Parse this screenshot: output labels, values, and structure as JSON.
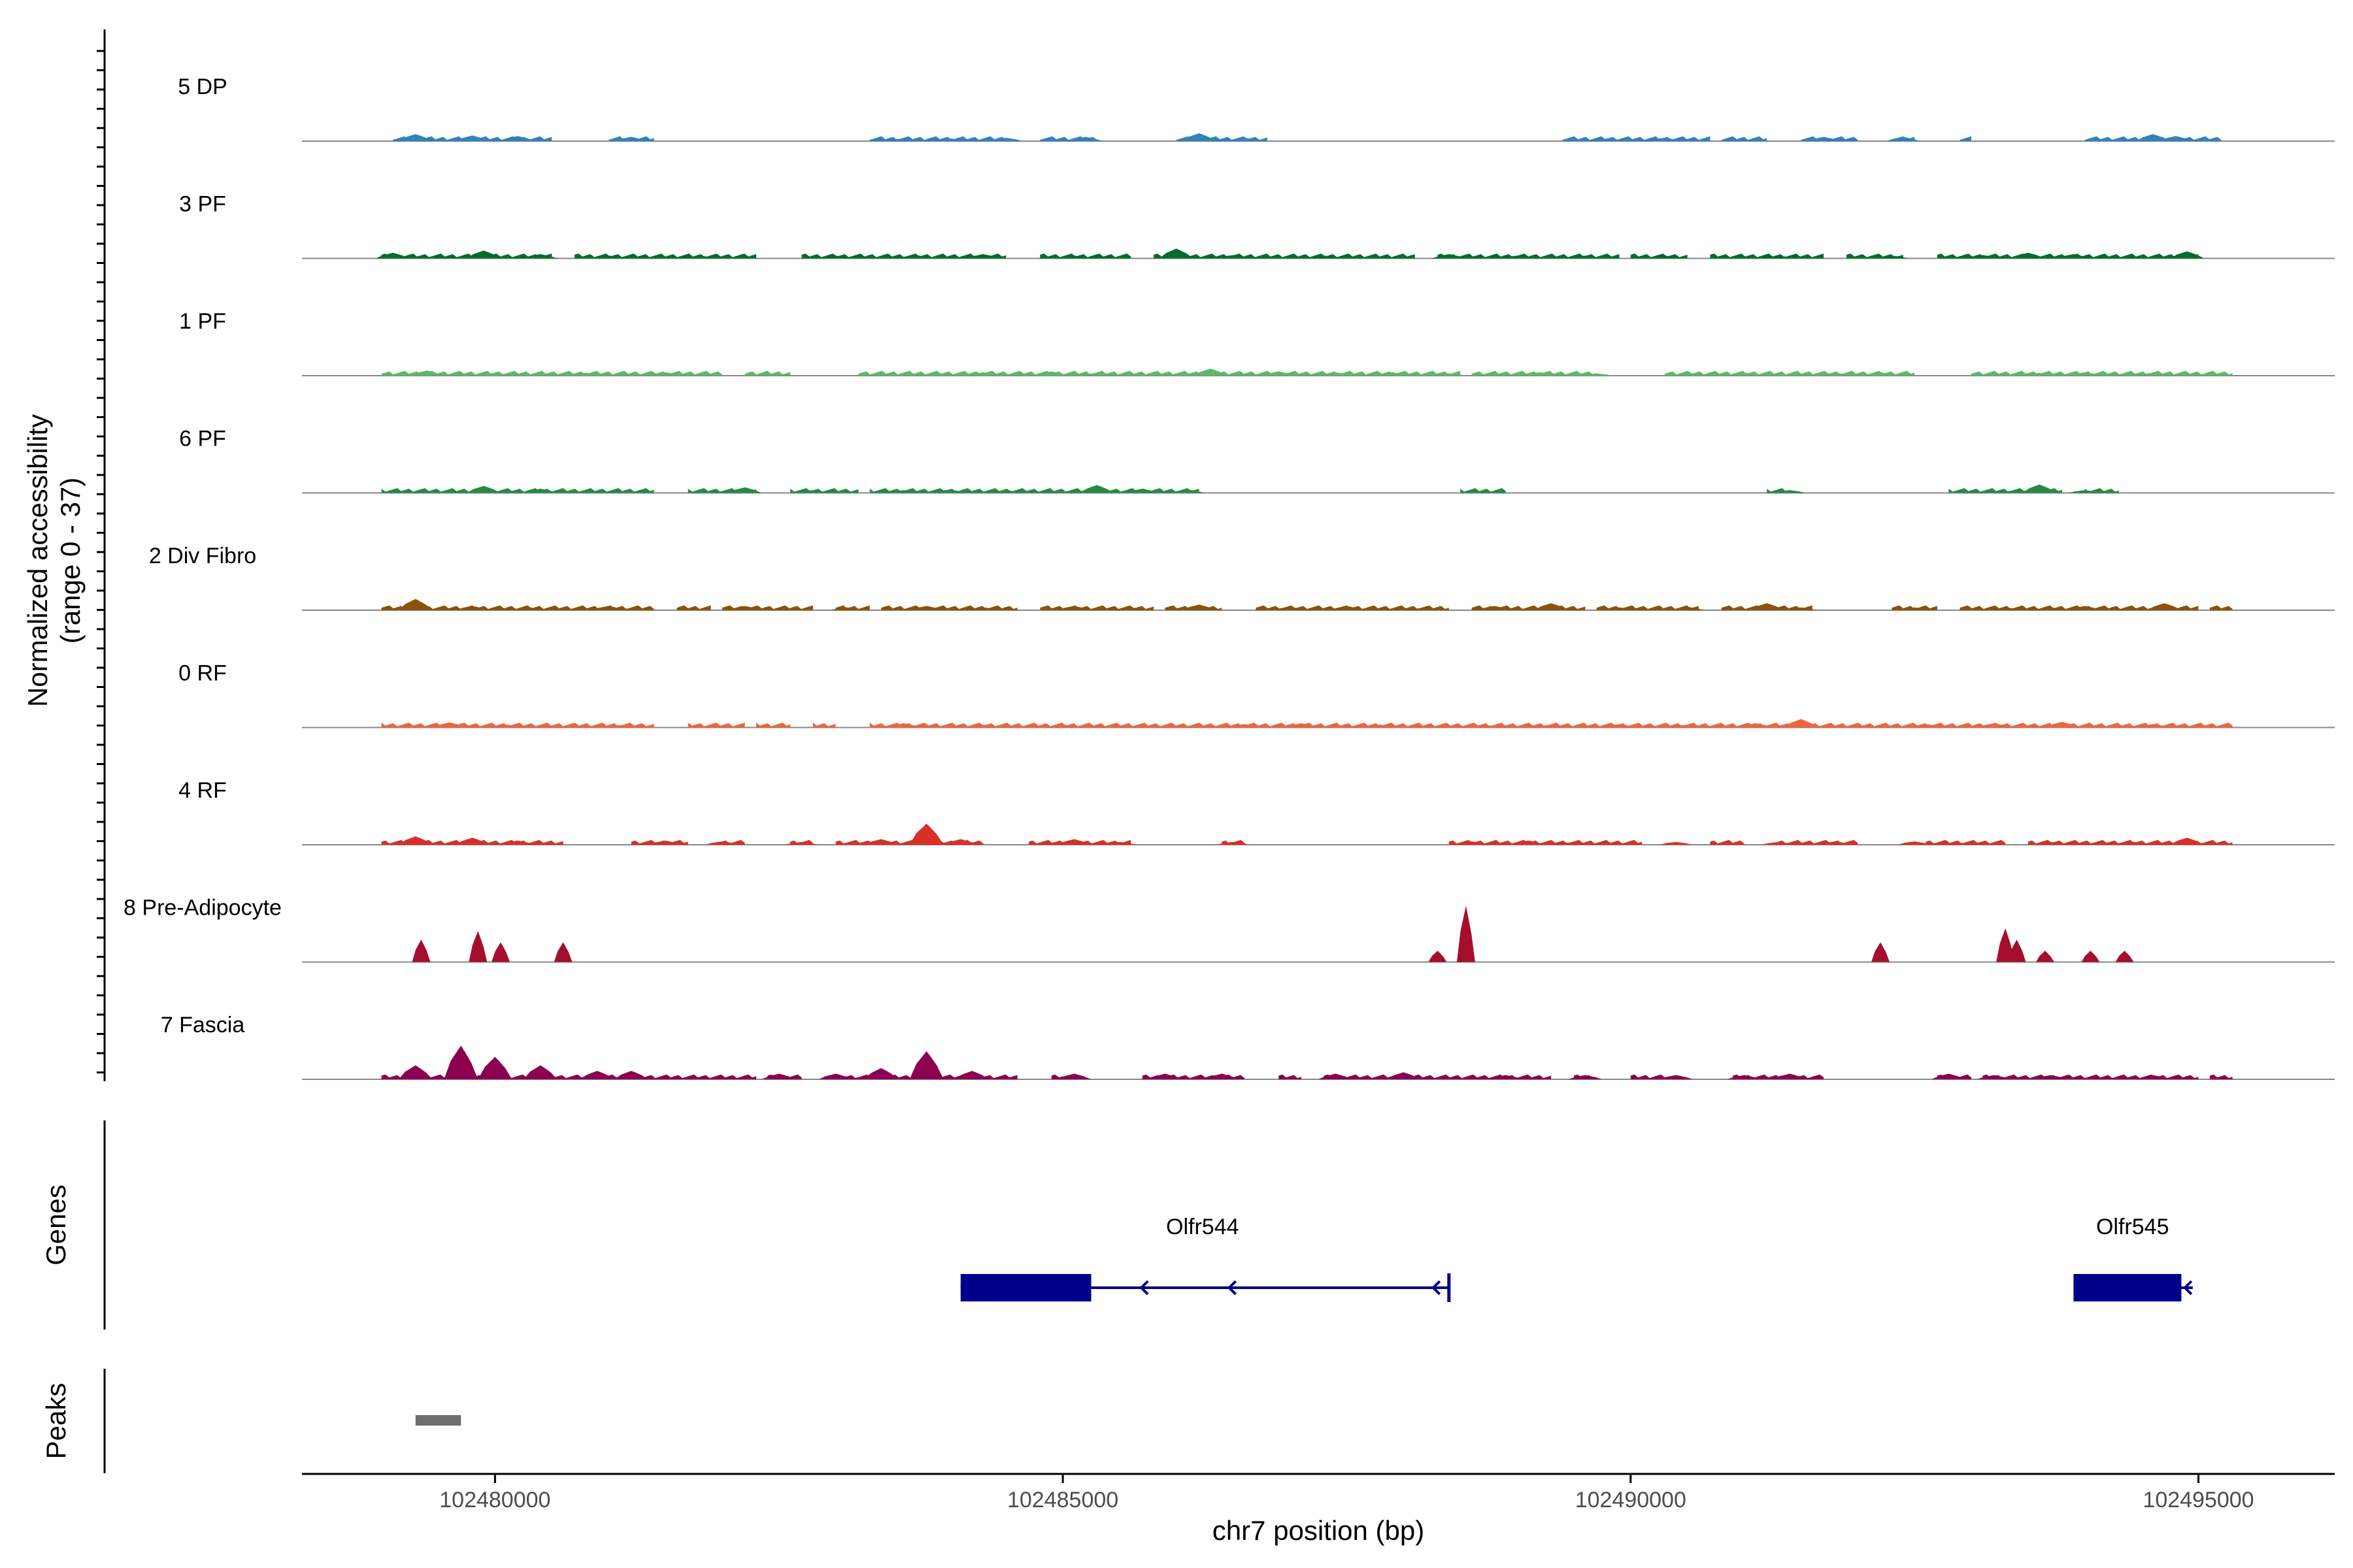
{
  "chart_data": {
    "type": "area",
    "chromosome": "chr7",
    "xlabel": "chr7 position (bp)",
    "xlim": [
      102478300,
      102496200
    ],
    "x_ticks": [
      102480000,
      102485000,
      102490000,
      102495000
    ],
    "x_tick_labels": [
      "102480000",
      "102485000",
      "102490000",
      "102495000"
    ],
    "y_label_line1": "Normalized accessibility",
    "y_label_line2": "(range 0 - 37)",
    "ylim": [
      0,
      37
    ],
    "tracks": [
      {
        "name": "5 DP",
        "color": "#3182bd",
        "start": 102479000,
        "end": 102495200,
        "segments": [
          [
            102479100,
            102480500
          ],
          [
            102481000,
            102481400
          ],
          [
            102483300,
            102484500
          ],
          [
            102484800,
            102485300
          ],
          [
            102486000,
            102486800
          ],
          [
            102489400,
            102490700
          ],
          [
            102490800,
            102491200
          ],
          [
            102491500,
            102492000
          ],
          [
            102492300,
            102492500
          ],
          [
            102492900,
            102493000
          ],
          [
            102494000,
            102495200
          ]
        ],
        "peaks": [
          [
            102479300,
            2.5
          ],
          [
            102479800,
            2
          ],
          [
            102480200,
            1.8
          ],
          [
            102481200,
            1.5
          ],
          [
            102483600,
            1
          ],
          [
            102484000,
            1
          ],
          [
            102484500,
            1.2
          ],
          [
            102485200,
            1.5
          ],
          [
            102486200,
            2.8
          ],
          [
            102486600,
            1.2
          ],
          [
            102489800,
            1
          ],
          [
            102490300,
            1.2
          ],
          [
            102490500,
            0.8
          ],
          [
            102491700,
            1.5
          ],
          [
            102492400,
            1.5
          ],
          [
            102494600,
            2.5
          ],
          [
            102494800,
            1.8
          ]
        ]
      },
      {
        "name": "3 PF",
        "color": "#006d2c",
        "start": 102479000,
        "end": 102495200,
        "segments": [
          [
            102479000,
            102480500
          ],
          [
            102480700,
            102482300
          ],
          [
            102482700,
            102484500
          ],
          [
            102484800,
            102485600
          ],
          [
            102485800,
            102488100
          ],
          [
            102488300,
            102489900
          ],
          [
            102490000,
            102490500
          ],
          [
            102490700,
            102491700
          ],
          [
            102491900,
            102492400
          ],
          [
            102492700,
            102495000
          ]
        ],
        "peaks": [
          [
            102479100,
            2
          ],
          [
            102479900,
            2.8
          ],
          [
            102480400,
            1.5
          ],
          [
            102481000,
            1
          ],
          [
            102481800,
            1
          ],
          [
            102483000,
            1
          ],
          [
            102483700,
            1.2
          ],
          [
            102484300,
            1.5
          ],
          [
            102485100,
            1
          ],
          [
            102486000,
            3.5
          ],
          [
            102486500,
            1.2
          ],
          [
            102487300,
            1
          ],
          [
            102488400,
            1.5
          ],
          [
            102489000,
            1
          ],
          [
            102489600,
            1
          ],
          [
            102490300,
            1
          ],
          [
            102491300,
            1
          ],
          [
            102492300,
            1
          ],
          [
            102493100,
            1.2
          ],
          [
            102493500,
            2
          ],
          [
            102493900,
            1.5
          ],
          [
            102494900,
            2.5
          ]
        ]
      },
      {
        "name": "1 PF",
        "color": "#5ab966",
        "start": 102479000,
        "end": 102495300,
        "segments": [
          [
            102479000,
            102482000
          ],
          [
            102482200,
            102482600
          ],
          [
            102483200,
            102488500
          ],
          [
            102488600,
            102489700
          ],
          [
            102490300,
            102492500
          ],
          [
            102493000,
            102495300
          ]
        ],
        "peaks": [
          [
            102479400,
            1.8
          ],
          [
            102480000,
            1
          ],
          [
            102480800,
            1
          ],
          [
            102481500,
            1.2
          ],
          [
            102483400,
            1
          ],
          [
            102484300,
            1.2
          ],
          [
            102484900,
            1.5
          ],
          [
            102485300,
            1
          ],
          [
            102486300,
            2.5
          ],
          [
            102486900,
            1.5
          ],
          [
            102487400,
            1.2
          ],
          [
            102487900,
            1.2
          ],
          [
            102488400,
            0.8
          ],
          [
            102489200,
            1.2
          ],
          [
            102489700,
            0.8
          ],
          [
            102490500,
            1
          ],
          [
            102491000,
            1
          ],
          [
            102491800,
            1
          ],
          [
            102492200,
            1.2
          ],
          [
            102493600,
            1
          ],
          [
            102494000,
            1.2
          ],
          [
            102494600,
            1
          ]
        ]
      },
      {
        "name": "6 PF",
        "color": "#238b45",
        "start": 102479000,
        "end": 102495300,
        "segments": [
          [
            102479000,
            102481400
          ],
          [
            102481700,
            102482300
          ],
          [
            102482600,
            102483200
          ],
          [
            102483300,
            102486200
          ],
          [
            102488500,
            102488900
          ],
          [
            102491200,
            102491400
          ],
          [
            102492800,
            102493500
          ],
          [
            102493600,
            102493800
          ],
          [
            102494000,
            102494300
          ]
        ],
        "peaks": [
          [
            102479900,
            2.5
          ],
          [
            102480400,
            1.5
          ],
          [
            102482200,
            2
          ],
          [
            102482800,
            1
          ],
          [
            102483600,
            1
          ],
          [
            102484000,
            1.2
          ],
          [
            102484500,
            1
          ],
          [
            102485300,
            2.8
          ],
          [
            102485700,
            1.5
          ],
          [
            102486100,
            1.2
          ],
          [
            102491400,
            1
          ],
          [
            102493400,
            1
          ],
          [
            102493600,
            3
          ],
          [
            102494000,
            1
          ]
        ]
      },
      {
        "name": "2 Div Fibro",
        "color": "#8c510a",
        "start": 102479000,
        "end": 102495300,
        "segments": [
          [
            102479000,
            102481400
          ],
          [
            102481600,
            102481900
          ],
          [
            102482000,
            102482800
          ],
          [
            102483000,
            102483300
          ],
          [
            102483400,
            102484600
          ],
          [
            102484800,
            102485800
          ],
          [
            102485900,
            102486400
          ],
          [
            102486700,
            102488400
          ],
          [
            102488600,
            102489600
          ],
          [
            102489700,
            102490600
          ],
          [
            102490800,
            102491600
          ],
          [
            102492300,
            102492700
          ],
          [
            102492900,
            102495000
          ],
          [
            102495100,
            102495300
          ]
        ],
        "peaks": [
          [
            102479300,
            4
          ],
          [
            102479800,
            1.5
          ],
          [
            102480300,
            1
          ],
          [
            102481000,
            1.5
          ],
          [
            102482200,
            1.5
          ],
          [
            102483100,
            1
          ],
          [
            102483800,
            1.5
          ],
          [
            102484300,
            1
          ],
          [
            102485100,
            1.5
          ],
          [
            102485600,
            1
          ],
          [
            102486200,
            2
          ],
          [
            102487000,
            1.2
          ],
          [
            102487500,
            1.5
          ],
          [
            102488200,
            1
          ],
          [
            102488800,
            1.5
          ],
          [
            102489300,
            2.5
          ],
          [
            102489900,
            1
          ],
          [
            102490500,
            1.2
          ],
          [
            102491200,
            2.5
          ],
          [
            102491500,
            1
          ],
          [
            102492500,
            1
          ],
          [
            102493300,
            1
          ],
          [
            102493700,
            1
          ],
          [
            102494000,
            1.5
          ],
          [
            102494700,
            2.5
          ]
        ]
      },
      {
        "name": "0 RF",
        "color": "#f0643c",
        "start": 102479000,
        "end": 102495300,
        "segments": [
          [
            102479000,
            102481400
          ],
          [
            102481700,
            102482200
          ],
          [
            102482300,
            102482600
          ],
          [
            102482800,
            102483000
          ],
          [
            102483300,
            102493700
          ],
          [
            102493800,
            102495300
          ]
        ],
        "peaks": [
          [
            102479600,
            1.8
          ],
          [
            102480100,
            1
          ],
          [
            102481100,
            0.8
          ],
          [
            102483600,
            1.5
          ],
          [
            102484300,
            1
          ],
          [
            102485000,
            1
          ],
          [
            102486600,
            1.2
          ],
          [
            102487100,
            1.5
          ],
          [
            102487800,
            1
          ],
          [
            102488700,
            1
          ],
          [
            102489300,
            1
          ],
          [
            102489900,
            1.2
          ],
          [
            102490500,
            1
          ],
          [
            102491100,
            1.5
          ],
          [
            102491500,
            3
          ],
          [
            102492600,
            1.2
          ],
          [
            102493200,
            1.5
          ],
          [
            102493800,
            2
          ],
          [
            102494600,
            1.2
          ]
        ]
      },
      {
        "name": "4 RF",
        "color": "#d73027",
        "start": 102479000,
        "end": 102495300,
        "segments": [
          [
            102479000,
            102480600
          ],
          [
            102481200,
            102481700
          ],
          [
            102482000,
            102482200
          ],
          [
            102482600,
            102482800
          ],
          [
            102483000,
            102483500
          ],
          [
            102483500,
            102484300
          ],
          [
            102484700,
            102485600
          ],
          [
            102486400,
            102486600
          ],
          [
            102488400,
            102490100
          ],
          [
            102490700,
            102491000
          ],
          [
            102491300,
            102492000
          ],
          [
            102492600,
            102493300
          ],
          [
            102493500,
            102495300
          ]
        ],
        "peaks": [
          [
            102479300,
            3
          ],
          [
            102479800,
            2.5
          ],
          [
            102480200,
            1.5
          ],
          [
            102481500,
            1.5
          ],
          [
            102482000,
            1.2
          ],
          [
            102482700,
            1
          ],
          [
            102483400,
            2
          ],
          [
            102483800,
            7.5
          ],
          [
            102484100,
            2
          ],
          [
            102485100,
            2
          ],
          [
            102485500,
            1
          ],
          [
            102486500,
            1
          ],
          [
            102488600,
            1.2
          ],
          [
            102489100,
            1.5
          ],
          [
            102489500,
            1
          ],
          [
            102490400,
            1
          ],
          [
            102491300,
            1
          ],
          [
            102491800,
            1.2
          ],
          [
            102492500,
            1.2
          ],
          [
            102493000,
            1
          ],
          [
            102493700,
            1
          ],
          [
            102494400,
            1.2
          ],
          [
            102494900,
            2.5
          ]
        ]
      },
      {
        "name": "8 Pre-Adipocyte",
        "color": "#a50f2d",
        "start": 102479000,
        "end": 102495300,
        "segments": [],
        "peaks": [
          [
            102479350,
            8
          ],
          [
            102479850,
            11
          ],
          [
            102480050,
            7
          ],
          [
            102480600,
            7
          ],
          [
            102488300,
            4
          ],
          [
            102488550,
            20
          ],
          [
            102492200,
            7
          ],
          [
            102493300,
            12
          ],
          [
            102493400,
            8
          ],
          [
            102493650,
            4
          ],
          [
            102494050,
            4
          ],
          [
            102494350,
            4
          ]
        ]
      },
      {
        "name": "7 Fascia",
        "color": "#8c0050",
        "start": 102479000,
        "end": 102495300,
        "segments": [
          [
            102479000,
            102480900
          ],
          [
            102481000,
            102482300
          ],
          [
            102482400,
            102482700
          ],
          [
            102483000,
            102484600
          ],
          [
            102484900,
            102485000
          ],
          [
            102485700,
            102486600
          ],
          [
            102486900,
            102487100
          ],
          [
            102487300,
            102488000
          ],
          [
            102488100,
            102489300
          ],
          [
            102489500,
            102489700
          ],
          [
            102490000,
            102490300
          ],
          [
            102490900,
            102491700
          ],
          [
            102492700,
            102493000
          ],
          [
            102493100,
            102495000
          ],
          [
            102495100,
            102495300
          ]
        ],
        "peaks": [
          [
            102479300,
            5
          ],
          [
            102479700,
            12
          ],
          [
            102480000,
            8
          ],
          [
            102480400,
            5
          ],
          [
            102480900,
            3
          ],
          [
            102481200,
            3
          ],
          [
            102482500,
            2
          ],
          [
            102483000,
            2
          ],
          [
            102483400,
            4
          ],
          [
            102483800,
            10
          ],
          [
            102484200,
            3
          ],
          [
            102485100,
            2
          ],
          [
            102485900,
            2
          ],
          [
            102486400,
            2
          ],
          [
            102487400,
            2
          ],
          [
            102488000,
            2.5
          ],
          [
            102488900,
            1.5
          ],
          [
            102489600,
            1.5
          ],
          [
            102490400,
            1.5
          ],
          [
            102491000,
            1.5
          ],
          [
            102491400,
            2
          ],
          [
            102492800,
            2
          ],
          [
            102493200,
            1.5
          ],
          [
            102493700,
            1.5
          ],
          [
            102494600,
            1.5
          ]
        ]
      }
    ],
    "genes_label": "Genes",
    "genes": [
      {
        "name": "Olfr544",
        "start": 102484100,
        "end": 102488400,
        "strand": "-",
        "exon_start": 102484100,
        "exon_end": 102485250,
        "color": "#00008b"
      },
      {
        "name": "Olfr545",
        "start": 102493900,
        "end": 102494950,
        "strand": "-",
        "exon_start": 102493900,
        "exon_end": 102494850,
        "color": "#00008b"
      }
    ],
    "peaks_label": "Peaks",
    "peak_regions": [
      [
        102479300,
        102479700
      ]
    ],
    "peak_color": "#6e6e6e"
  }
}
